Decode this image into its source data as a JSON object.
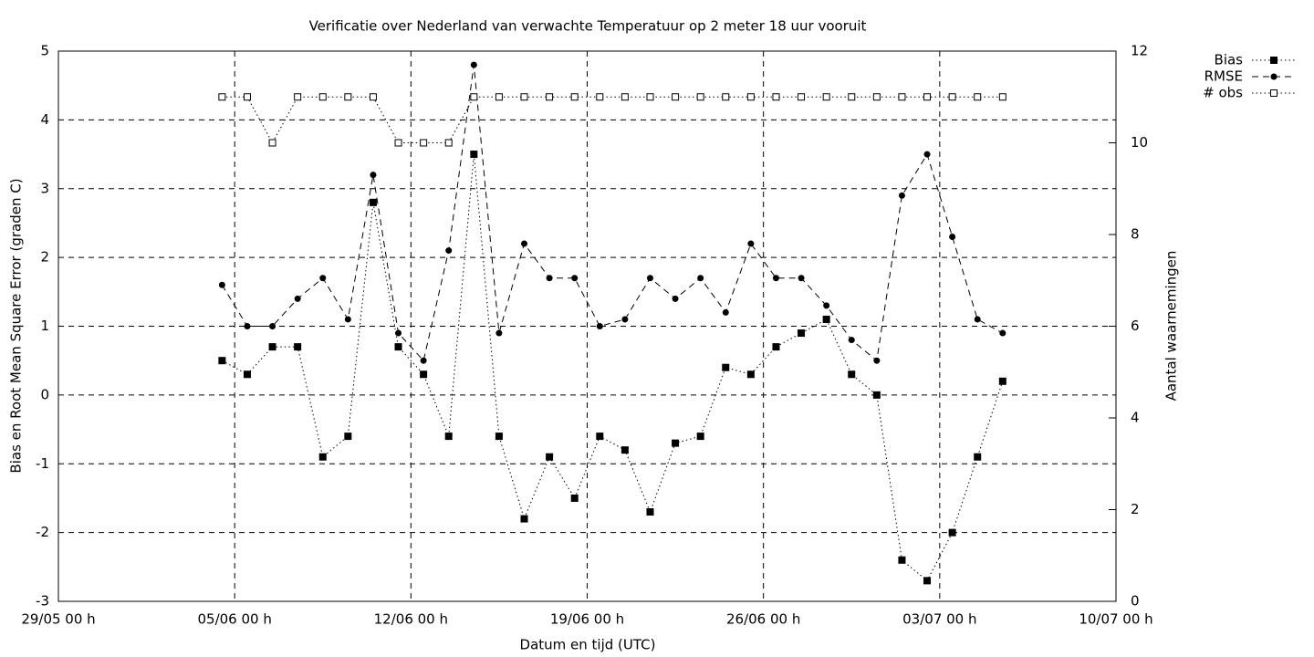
{
  "chart_data": {
    "type": "line",
    "title": "Verificatie over Nederland van verwachte Temperatuur op 2 meter 18 uur vooruit",
    "x_label": "Datum en tijd (UTC)",
    "y_label": "Bias en Root Mean Square Error (graden C)",
    "y2_label": "Aantal waarnemingen",
    "x": [
      "04/06 12 h",
      "05/06 12 h",
      "06/06 12 h",
      "07/06 12 h",
      "08/06 12 h",
      "09/06 12 h",
      "10/06 12 h",
      "11/06 12 h",
      "12/06 12 h",
      "13/06 12 h",
      "14/06 12 h",
      "15/06 12 h",
      "16/06 12 h",
      "17/06 12 h",
      "18/06 12 h",
      "19/06 12 h",
      "20/06 12 h",
      "21/06 12 h",
      "22/06 12 h",
      "23/06 12 h",
      "24/06 12 h",
      "25/06 12 h",
      "26/06 12 h",
      "27/06 12 h",
      "28/06 12 h",
      "29/06 12 h",
      "30/06 12 h",
      "01/07 12 h",
      "02/07 12 h",
      "03/07 12 h",
      "04/07 12 h",
      "05/07 12 h"
    ],
    "xlim": [
      "29/05 00 h",
      "10/07 00 h"
    ],
    "xticks": [
      "29/05 00 h",
      "05/06 00 h",
      "12/06 00 h",
      "19/06 00 h",
      "26/06 00 h",
      "03/07 00 h",
      "10/07 00 h"
    ],
    "ylim": [
      -3,
      5
    ],
    "yticks": [
      -3,
      -2,
      -1,
      0,
      1,
      2,
      3,
      4,
      5
    ],
    "y2lim": [
      0,
      12
    ],
    "y2ticks": [
      0,
      2,
      4,
      6,
      8,
      10,
      12
    ],
    "grid": true,
    "legend": "top-right",
    "series": [
      {
        "name": "Bias",
        "color": "#000000",
        "line": "dotted",
        "marker": "filled-square",
        "values": [
          0.5,
          0.3,
          0.7,
          0.7,
          -0.9,
          -0.6,
          2.8,
          0.7,
          0.3,
          -0.6,
          3.5,
          -0.6,
          -1.8,
          -0.9,
          -1.5,
          -0.6,
          -0.8,
          -1.7,
          -0.7,
          -0.6,
          0.4,
          0.3,
          0.7,
          0.9,
          1.1,
          0.3,
          0.0,
          -2.4,
          -2.7,
          -2.0,
          -0.9,
          0.2
        ]
      },
      {
        "name": "RMSE",
        "color": "#000000",
        "line": "dashed",
        "marker": "filled-circle",
        "values": [
          1.6,
          1.0,
          1.0,
          1.4,
          1.7,
          1.1,
          3.2,
          0.9,
          0.5,
          2.1,
          4.8,
          0.9,
          2.2,
          1.7,
          1.7,
          1.0,
          1.1,
          1.7,
          1.4,
          1.7,
          1.2,
          2.2,
          1.7,
          1.7,
          1.3,
          0.8,
          0.5,
          2.9,
          3.5,
          2.3,
          1.1,
          0.9
        ]
      },
      {
        "name": "# obs",
        "color": "#000000",
        "line": "dotted",
        "marker": "open-square",
        "axis": "y2",
        "values": [
          11,
          11,
          10,
          11,
          11,
          11,
          11,
          10,
          10,
          10,
          11,
          11,
          11,
          11,
          11,
          11,
          11,
          11,
          11,
          11,
          11,
          11,
          11,
          11,
          11,
          11,
          11,
          11,
          11,
          11,
          11,
          11
        ]
      }
    ]
  }
}
